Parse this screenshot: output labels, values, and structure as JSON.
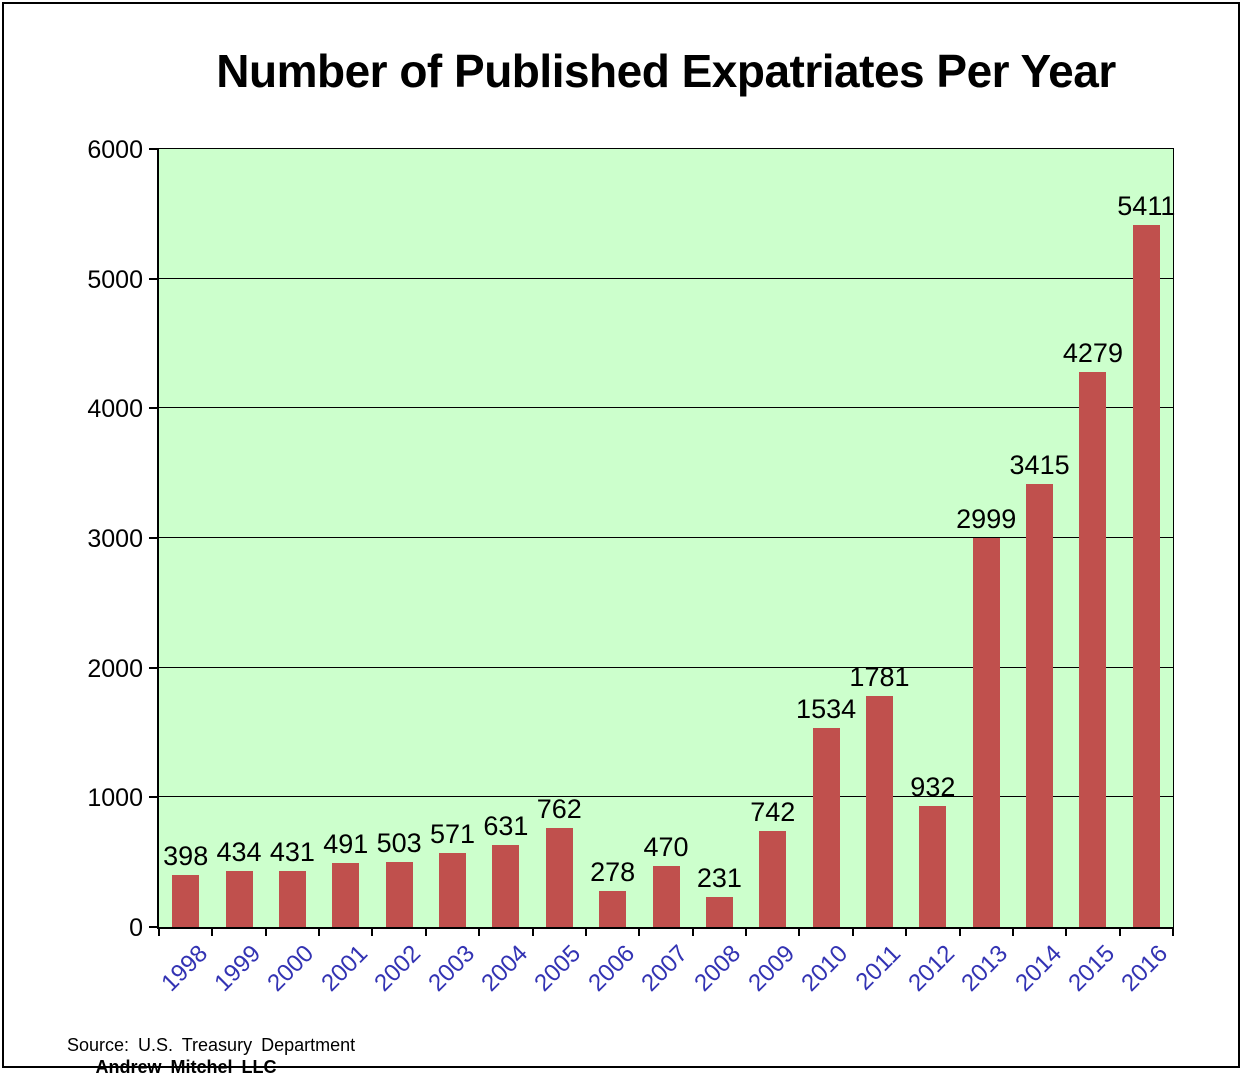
{
  "chart_data": {
    "type": "bar",
    "title": "Number of Published Expatriates Per Year",
    "categories": [
      "1998",
      "1999",
      "2000",
      "2001",
      "2002",
      "2003",
      "2004",
      "2005",
      "2006",
      "2007",
      "2008",
      "2009",
      "2010",
      "2011",
      "2012",
      "2013",
      "2014",
      "2015",
      "2016"
    ],
    "values": [
      398,
      434,
      431,
      491,
      503,
      571,
      631,
      762,
      278,
      470,
      231,
      742,
      1534,
      1781,
      932,
      2999,
      3415,
      4279,
      5411
    ],
    "xlabel": "",
    "ylabel": "",
    "ylim": [
      0,
      6000
    ],
    "yticks": [
      0,
      1000,
      2000,
      3000,
      4000,
      5000,
      6000
    ],
    "grid": true,
    "legend_position": "none",
    "data_labels": true,
    "bar_color": "#C0504D",
    "plot_background": "#CCFFCC",
    "gridline_color": "#000000",
    "xtick_label_color": "#3333B3",
    "ytick_label_color": "#000000"
  },
  "source": {
    "line1": "Source: U.S. Treasury Department",
    "line2": "Andrew Mitchel LLC"
  }
}
